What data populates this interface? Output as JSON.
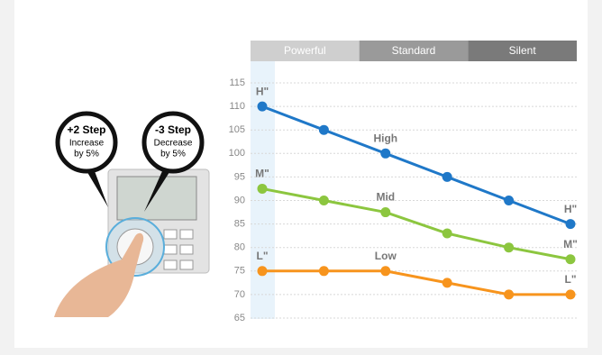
{
  "chart_data": {
    "type": "line",
    "bands": [
      "Powerful",
      "Standard",
      "Silent"
    ],
    "categories": [
      null,
      null,
      null,
      null,
      null,
      null
    ],
    "series": [
      {
        "color": "#1f78c8",
        "values": [
          110,
          105,
          100,
          95,
          90,
          85
        ],
        "labels": [
          "H\"",
          null,
          "High",
          null,
          null,
          "H\""
        ]
      },
      {
        "color": "#8cc63f",
        "values": [
          92.5,
          90,
          87.5,
          83,
          80,
          77.5
        ],
        "labels": [
          "M\"",
          null,
          "Mid",
          null,
          null,
          "M\""
        ]
      },
      {
        "color": "#f7941d",
        "values": [
          75,
          75,
          75,
          72.5,
          70,
          70
        ],
        "labels": [
          "L\"",
          null,
          "Low",
          null,
          null,
          "L\""
        ]
      }
    ],
    "ylim": [
      65,
      115
    ],
    "yticks": [
      65,
      70,
      75,
      80,
      85,
      90,
      95,
      100,
      105,
      110,
      115
    ],
    "grid": true
  },
  "callouts": [
    {
      "title": "+2 Step",
      "lines": [
        "Increase",
        "by 5%"
      ]
    },
    {
      "title": "-3 Step",
      "lines": [
        "Decrease",
        "by 5%"
      ]
    }
  ]
}
